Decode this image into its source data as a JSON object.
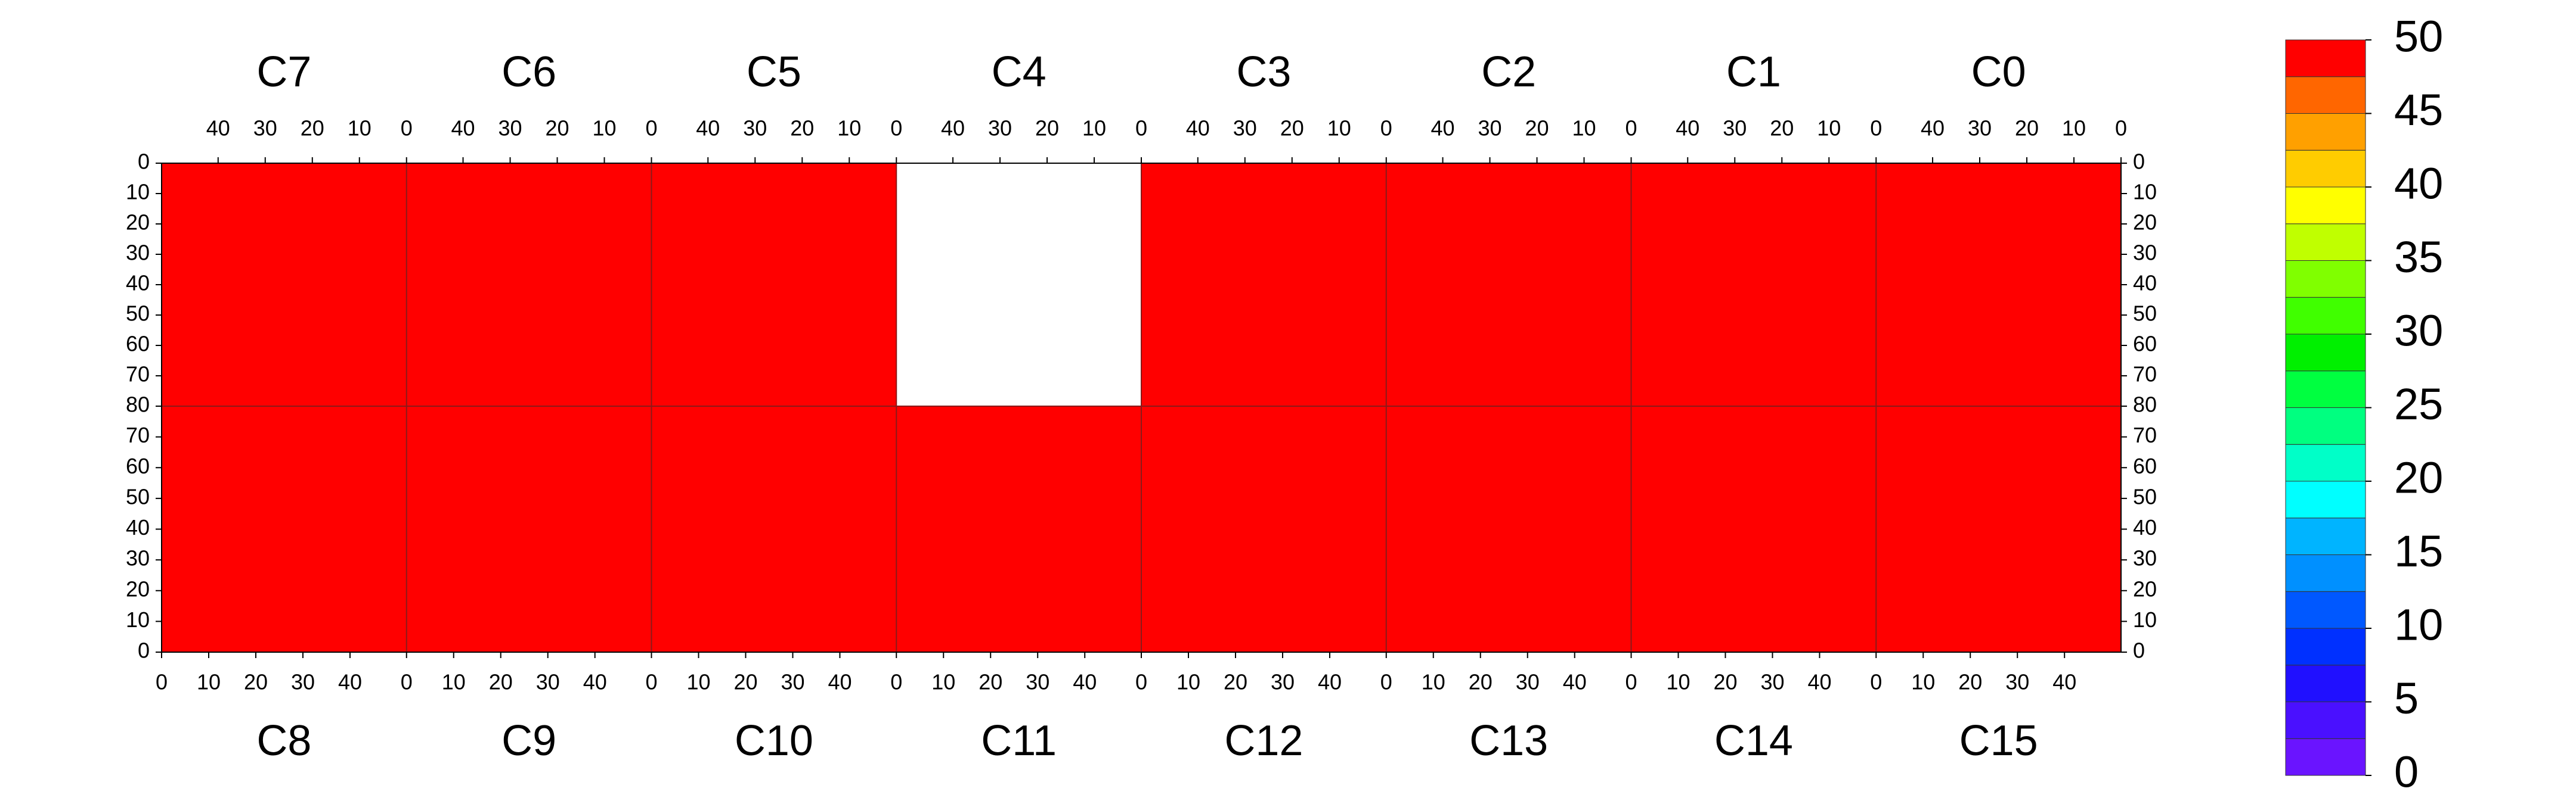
{
  "chart_data": {
    "type": "heatmap",
    "top_chips": [
      {
        "name": "C7",
        "value": 50
      },
      {
        "name": "C6",
        "value": 50
      },
      {
        "name": "C5",
        "value": 50
      },
      {
        "name": "C4",
        "value": null
      },
      {
        "name": "C3",
        "value": 50
      },
      {
        "name": "C2",
        "value": 50
      },
      {
        "name": "C1",
        "value": 50
      },
      {
        "name": "C0",
        "value": 50
      }
    ],
    "bottom_chips": [
      {
        "name": "C8",
        "value": 50
      },
      {
        "name": "C9",
        "value": 50
      },
      {
        "name": "C10",
        "value": 50
      },
      {
        "name": "C11",
        "value": 50
      },
      {
        "name": "C12",
        "value": 50
      },
      {
        "name": "C13",
        "value": 50
      },
      {
        "name": "C14",
        "value": 50
      },
      {
        "name": "C15",
        "value": 50
      }
    ],
    "xlim": [
      0,
      52
    ],
    "xticks": [
      0,
      10,
      20,
      30,
      40
    ],
    "ylim": [
      0,
      80
    ],
    "yticks": [
      0,
      10,
      20,
      30,
      40,
      50,
      60,
      70,
      80
    ],
    "colorbar": {
      "levels": [
        0,
        2.5,
        5,
        7.5,
        10,
        12.5,
        15,
        17.5,
        20,
        22.5,
        25,
        27.5,
        30,
        32.5,
        35,
        37.5,
        40,
        42.5,
        45,
        47.5,
        50
      ],
      "colors": [
        "#6a14ff",
        "#4a10ff",
        "#2010ff",
        "#0030ff",
        "#0058ff",
        "#0090ff",
        "#00b4ff",
        "#00ffff",
        "#00ffc8",
        "#00ff80",
        "#00ff40",
        "#00f000",
        "#40ff00",
        "#80ff00",
        "#c0ff00",
        "#ffff00",
        "#ffcc00",
        "#ffa000",
        "#ff6600",
        "#ff0000"
      ],
      "ticks": [
        0,
        5,
        10,
        15,
        20,
        25,
        30,
        35,
        40,
        45,
        50
      ]
    }
  }
}
